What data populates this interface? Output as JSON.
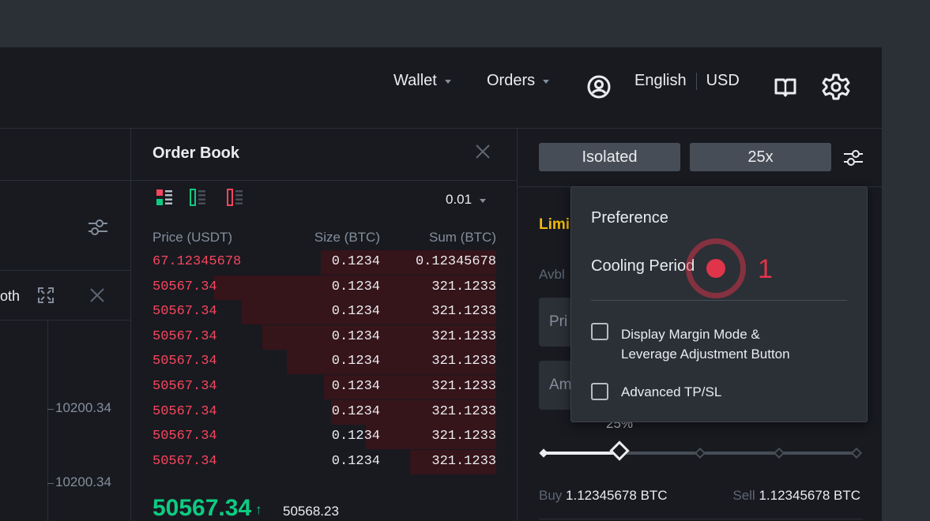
{
  "header": {
    "wallet": "Wallet",
    "orders": "Orders",
    "language": "English",
    "currency": "USD",
    "icons": [
      "user-icon",
      "book-icon",
      "settings-icon"
    ]
  },
  "left": {
    "tab_partial": "oth",
    "price_labels": [
      "10200.34",
      "10200.34"
    ]
  },
  "order_book": {
    "title": "Order Book",
    "precision": "0.01",
    "columns": [
      "Price (USDT)",
      "Size (BTC)",
      "Sum (BTC)"
    ],
    "rows": [
      {
        "price": "67.12345678",
        "size": "0.1234",
        "sum": "0.12345678",
        "depth": 0.51
      },
      {
        "price": "50567.34",
        "size": "0.1234",
        "sum": "321.1233",
        "depth": 0.82
      },
      {
        "price": "50567.34",
        "size": "0.1234",
        "sum": "321.1233",
        "depth": 0.74
      },
      {
        "price": "50567.34",
        "size": "0.1234",
        "sum": "321.1233",
        "depth": 0.68
      },
      {
        "price": "50567.34",
        "size": "0.1234",
        "sum": "321.1233",
        "depth": 0.61
      },
      {
        "price": "50567.34",
        "size": "0.1234",
        "sum": "321.1233",
        "depth": 0.5
      },
      {
        "price": "50567.34",
        "size": "0.1234",
        "sum": "321.1233",
        "depth": 0.48
      },
      {
        "price": "50567.34",
        "size": "0.1234",
        "sum": "321.1233",
        "depth": 0.38
      },
      {
        "price": "50567.34",
        "size": "0.1234",
        "sum": "321.1233",
        "depth": 0.25
      }
    ],
    "last_price": "50567.34",
    "mark_price": "50568.23",
    "direction": "up"
  },
  "trade_panel": {
    "margin_mode": "Isolated",
    "leverage": "25x",
    "partial_limit": "Limi",
    "partial_avbl": "Avbl",
    "partial_price": "Pri",
    "partial_amount": "Am",
    "slider_percent": "25%",
    "slider_value": 0.25,
    "buy_label": "Buy",
    "buy_value": "1.12345678 BTC",
    "sell_label": "Sell",
    "sell_value": "1.12345678 BTC"
  },
  "preference": {
    "title": "Preference",
    "cooling_period": "Cooling Period",
    "options": [
      {
        "label": "Display Margin Mode &\nLeverage Adjustment Button",
        "checked": false
      },
      {
        "label": "Advanced TP/SL",
        "checked": false
      }
    ]
  },
  "annotation": {
    "number": "1",
    "color": "#e0344a"
  },
  "colors": {
    "bg": "#181a20",
    "sell": "#f6465d",
    "buy": "#0ecb81",
    "panel": "#2b2f36"
  }
}
